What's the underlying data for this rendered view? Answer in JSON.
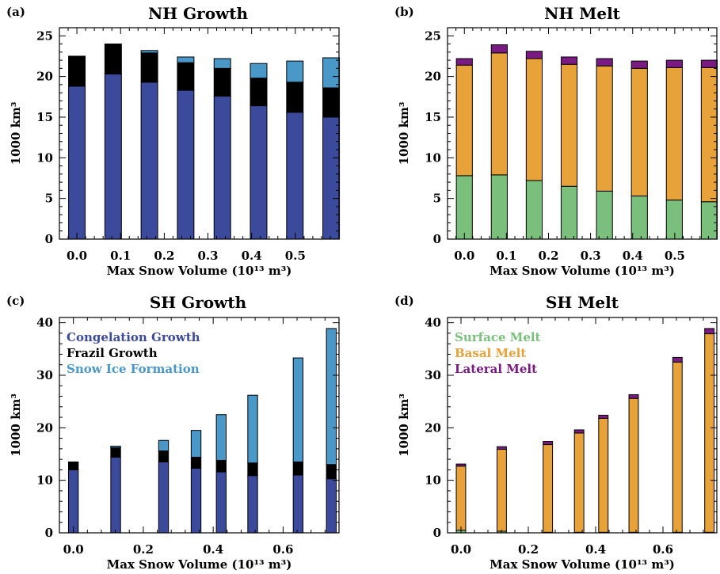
{
  "colors": {
    "congelation": "#3c4a9c",
    "frazil": "#000000",
    "snow_ice": "#4a98c8",
    "surface_melt": "#7abf7c",
    "basal_melt": "#e8a23a",
    "lateral_melt": "#7a1b83"
  },
  "chart_data": [
    {
      "type": "bar",
      "stacked": true,
      "panel": "(a)",
      "title": "NH Growth",
      "xlabel": "Max Snow Volume (10¹³ m³)",
      "ylabel": "1000 km³",
      "xlim": [
        -0.04,
        0.6
      ],
      "ylim": [
        0,
        26
      ],
      "xticks": [
        0.0,
        0.1,
        0.2,
        0.3,
        0.4,
        0.5
      ],
      "xtick_labels": [
        "0.0",
        "0.1",
        "0.2",
        "0.3",
        "0.4",
        "0.5"
      ],
      "yticks": [
        0,
        5,
        10,
        15,
        20,
        25
      ],
      "bar_width": 0.038,
      "x": [
        0.0,
        0.083,
        0.166,
        0.249,
        0.333,
        0.416,
        0.499,
        0.582
      ],
      "series": [
        {
          "color_key": "congelation",
          "values": [
            18.8,
            20.3,
            19.3,
            18.3,
            17.6,
            16.4,
            15.6,
            15.0
          ]
        },
        {
          "color_key": "frazil",
          "values": [
            3.7,
            3.7,
            3.6,
            3.4,
            3.4,
            3.4,
            3.7,
            3.6
          ]
        },
        {
          "color_key": "snow_ice",
          "values": [
            0.0,
            0.0,
            0.3,
            0.7,
            1.2,
            1.8,
            2.6,
            3.7
          ]
        }
      ]
    },
    {
      "type": "bar",
      "stacked": true,
      "panel": "(b)",
      "title": "NH Melt",
      "xlabel": "Max Snow Volume (10¹³ m³)",
      "ylabel": "1000 km³",
      "xlim": [
        -0.04,
        0.6
      ],
      "ylim": [
        0,
        26
      ],
      "xticks": [
        0.0,
        0.1,
        0.2,
        0.3,
        0.4,
        0.5
      ],
      "xtick_labels": [
        "0.0",
        "0.1",
        "0.2",
        "0.3",
        "0.4",
        "0.5"
      ],
      "yticks": [
        0,
        5,
        10,
        15,
        20,
        25
      ],
      "bar_width": 0.038,
      "x": [
        0.0,
        0.083,
        0.166,
        0.249,
        0.333,
        0.416,
        0.499,
        0.582
      ],
      "series": [
        {
          "color_key": "surface_melt",
          "values": [
            7.8,
            7.9,
            7.2,
            6.5,
            5.9,
            5.3,
            4.8,
            4.6
          ]
        },
        {
          "color_key": "basal_melt",
          "values": [
            13.6,
            15.0,
            15.0,
            15.0,
            15.4,
            15.7,
            16.3,
            16.5
          ]
        },
        {
          "color_key": "lateral_melt",
          "values": [
            0.8,
            1.0,
            0.9,
            0.9,
            0.9,
            0.9,
            0.9,
            0.9
          ]
        }
      ]
    },
    {
      "type": "bar",
      "stacked": true,
      "panel": "(c)",
      "title": "SH Growth",
      "xlabel": "Max Snow Volume (10¹³ m³)",
      "ylabel": "1000 km³",
      "xlim": [
        -0.04,
        0.76
      ],
      "ylim": [
        0,
        41
      ],
      "xticks": [
        0.0,
        0.2,
        0.4,
        0.6
      ],
      "xtick_labels": [
        "0.0",
        "0.2",
        "0.4",
        "0.6"
      ],
      "yticks": [
        0,
        10,
        20,
        30,
        40
      ],
      "bar_width": 0.028,
      "x": [
        0.0,
        0.121,
        0.258,
        0.351,
        0.423,
        0.513,
        0.643,
        0.738
      ],
      "series": [
        {
          "color_key": "congelation",
          "values": [
            12.0,
            14.4,
            13.5,
            12.3,
            11.6,
            10.9,
            11.0,
            10.3
          ]
        },
        {
          "color_key": "frazil",
          "values": [
            1.5,
            1.8,
            2.1,
            2.1,
            2.2,
            2.4,
            2.5,
            2.7
          ]
        },
        {
          "color_key": "snow_ice",
          "values": [
            0.0,
            0.3,
            2.0,
            5.1,
            8.7,
            12.9,
            19.8,
            25.9
          ]
        }
      ],
      "legend": {
        "placement": "top-left",
        "entries": [
          {
            "label": "Congelation Growth",
            "color_key": "congelation"
          },
          {
            "label": "Frazil Growth",
            "color_key": "frazil"
          },
          {
            "label": "Snow Ice Formation",
            "color_key": "snow_ice"
          }
        ]
      }
    },
    {
      "type": "bar",
      "stacked": true,
      "panel": "(d)",
      "title": "SH Melt",
      "xlabel": "Max Snow Volume (10¹³ m³)",
      "ylabel": "1000 km³",
      "xlim": [
        -0.04,
        0.76
      ],
      "ylim": [
        0,
        41
      ],
      "xticks": [
        0.0,
        0.2,
        0.4,
        0.6
      ],
      "xtick_labels": [
        "0.0",
        "0.2",
        "0.4",
        "0.6"
      ],
      "yticks": [
        0,
        10,
        20,
        30,
        40
      ],
      "bar_width": 0.028,
      "x": [
        0.0,
        0.121,
        0.258,
        0.351,
        0.423,
        0.513,
        0.643,
        0.738
      ],
      "series": [
        {
          "color_key": "surface_melt",
          "values": [
            0.5,
            0.3,
            0.1,
            0.1,
            0.1,
            0.1,
            0.1,
            0.1
          ]
        },
        {
          "color_key": "basal_melt",
          "values": [
            12.2,
            15.6,
            16.7,
            18.9,
            21.7,
            25.5,
            32.4,
            37.8
          ]
        },
        {
          "color_key": "lateral_melt",
          "values": [
            0.4,
            0.5,
            0.6,
            0.6,
            0.6,
            0.7,
            0.9,
            1.0
          ]
        }
      ],
      "legend": {
        "placement": "top-left",
        "entries": [
          {
            "label": "Surface Melt",
            "color_key": "surface_melt"
          },
          {
            "label": "Basal Melt",
            "color_key": "basal_melt"
          },
          {
            "label": "Lateral Melt",
            "color_key": "lateral_melt"
          }
        ]
      }
    }
  ]
}
